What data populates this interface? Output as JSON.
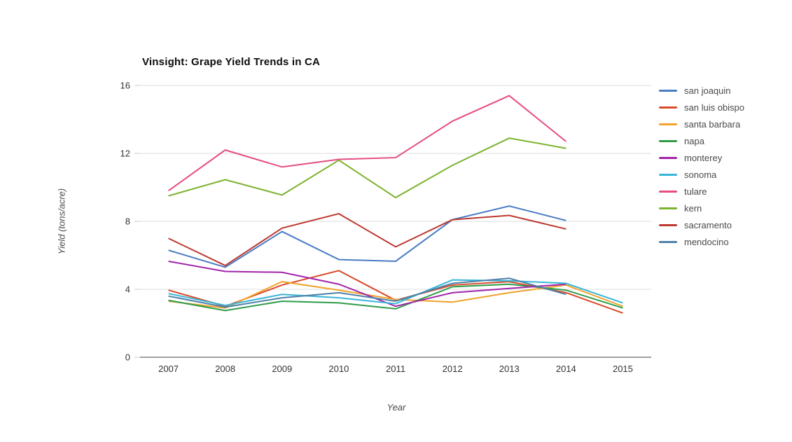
{
  "title": "Vinsight: Grape Yield Trends in CA",
  "chart_data": {
    "type": "line",
    "title": "Vinsight: Grape Yield Trends in CA",
    "xlabel": "Year",
    "ylabel": "Yield (tons/acre)",
    "x": [
      2007,
      2008,
      2009,
      2010,
      2011,
      2012,
      2013,
      2014,
      2015
    ],
    "ylim": [
      0,
      16
    ],
    "yticks": [
      0,
      4,
      8,
      12,
      16
    ],
    "grid": true,
    "legend_position": "right",
    "grid_color": "#dddddd",
    "axis_line_color": "#404040",
    "tick_label_color": "#333333",
    "series": [
      {
        "name": "san joaquin",
        "color": "#4a7bc4",
        "values": [
          6.3,
          5.3,
          7.4,
          5.75,
          5.65,
          8.1,
          8.9,
          8.05,
          null
        ]
      },
      {
        "name": "san luis obispo",
        "color": "#d9492b",
        "values": [
          3.95,
          3.0,
          4.25,
          5.1,
          3.35,
          4.25,
          4.45,
          3.8,
          2.6
        ]
      },
      {
        "name": "santa barbara",
        "color": "#f1a32a",
        "values": [
          3.3,
          2.9,
          4.45,
          3.95,
          3.4,
          3.25,
          3.8,
          4.25,
          3.0
        ]
      },
      {
        "name": "napa",
        "color": "#2f9c48",
        "values": [
          3.35,
          2.75,
          3.3,
          3.2,
          2.85,
          4.15,
          4.3,
          3.95,
          2.9
        ]
      },
      {
        "name": "monterey",
        "color": "#a224aa",
        "values": [
          5.65,
          5.05,
          5.0,
          4.3,
          3.0,
          3.8,
          4.05,
          4.3,
          null
        ]
      },
      {
        "name": "sonoma",
        "color": "#38b5d8",
        "values": [
          3.75,
          3.05,
          3.7,
          3.5,
          3.15,
          4.55,
          4.5,
          4.35,
          3.2
        ]
      },
      {
        "name": "tulare",
        "color": "#e64c82",
        "values": [
          9.8,
          12.2,
          11.2,
          11.65,
          11.75,
          13.9,
          15.4,
          12.7,
          null
        ]
      },
      {
        "name": "kern",
        "color": "#7cb32e",
        "values": [
          9.5,
          10.45,
          9.55,
          11.6,
          9.4,
          11.3,
          12.9,
          12.3,
          null
        ]
      },
      {
        "name": "sacramento",
        "color": "#bc3a31",
        "values": [
          7.0,
          5.4,
          7.6,
          8.45,
          6.5,
          8.1,
          8.35,
          7.55,
          null
        ]
      },
      {
        "name": "mendocino",
        "color": "#4d81a8",
        "values": [
          3.6,
          2.95,
          3.5,
          3.8,
          3.3,
          4.35,
          4.65,
          3.7,
          null
        ]
      }
    ]
  }
}
